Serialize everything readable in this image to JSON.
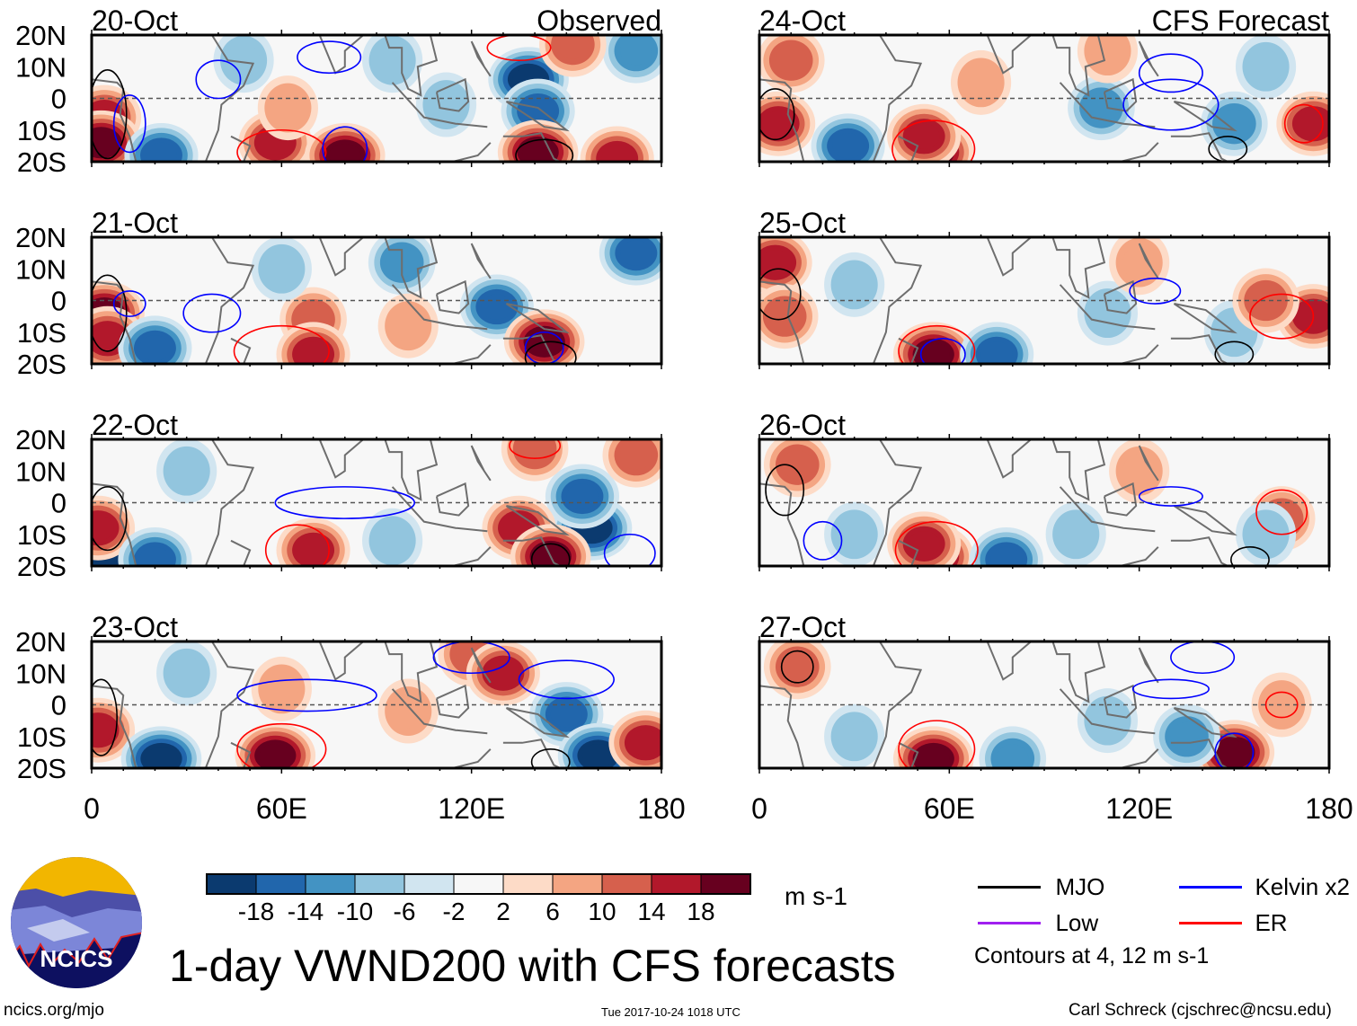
{
  "chart_data": {
    "type": "heatmap",
    "title": "1-day VWND200 with CFS forecasts",
    "units": "m s-1",
    "xlim": [
      0,
      180
    ],
    "ylim": [
      -20,
      20
    ],
    "xticks": [
      "0",
      "60E",
      "120E",
      "180"
    ],
    "xtick_values": [
      0,
      60,
      120,
      180
    ],
    "yticks": [
      "20N",
      "10N",
      "0",
      "10S",
      "20S"
    ],
    "ytick_values": [
      20,
      10,
      0,
      -10,
      -20
    ],
    "colorbar": {
      "labels": [
        "-18",
        "-14",
        "-10",
        "-6",
        "-2",
        "2",
        "6",
        "10",
        "14",
        "18"
      ],
      "colors": [
        "#0b3a6f",
        "#2166ac",
        "#4393c3",
        "#92c5de",
        "#d1e5f0",
        "#f7f7f7",
        "#fddbc7",
        "#f4a582",
        "#d6604d",
        "#b2182b",
        "#67001f"
      ]
    },
    "legend": {
      "items": [
        {
          "label": "MJO",
          "color": "#000000"
        },
        {
          "label": "Kelvin x2",
          "color": "#0000ff"
        },
        {
          "label": "Low",
          "color": "#a020f0"
        },
        {
          "label": "ER",
          "color": "#ff0000"
        }
      ],
      "note": "Contours at 4, 12 m s-1"
    },
    "column_headers": {
      "left": "Observed",
      "right": "CFS Forecast"
    },
    "panels": [
      {
        "date": "20-Oct",
        "col": 0,
        "row": 0,
        "anomalies": [
          [
            4,
            -6,
            14
          ],
          [
            3,
            -14,
            18
          ],
          [
            58,
            -14,
            14
          ],
          [
            80,
            -18,
            18
          ],
          [
            138,
            6,
            -18
          ],
          [
            141,
            -4,
            -14
          ],
          [
            141,
            -17,
            18
          ],
          [
            166,
            -19,
            14
          ],
          [
            22,
            -18,
            -14
          ],
          [
            62,
            -3,
            6
          ],
          [
            95,
            12,
            -6
          ],
          [
            172,
            15,
            -10
          ],
          [
            152,
            17,
            10
          ],
          [
            48,
            12,
            -6
          ],
          [
            112,
            -2,
            -6
          ]
        ],
        "contours": [
          [
            5,
            -5,
            6,
            14,
            "MJO"
          ],
          [
            12,
            -8,
            5,
            9,
            "Kelvin"
          ],
          [
            60,
            -17,
            14,
            7,
            "ER"
          ],
          [
            80,
            -16,
            7,
            7,
            "Kelvin"
          ],
          [
            143,
            -18,
            9,
            5,
            "MJO"
          ],
          [
            135,
            16,
            10,
            4,
            "ER"
          ],
          [
            75,
            13,
            10,
            5,
            "Kelvin"
          ],
          [
            40,
            6,
            7,
            6,
            "Kelvin"
          ]
        ]
      },
      {
        "date": "21-Oct",
        "col": 0,
        "row": 1,
        "anomalies": [
          [
            4,
            -4,
            18
          ],
          [
            5,
            -12,
            14
          ],
          [
            70,
            -6,
            10
          ],
          [
            70,
            -17,
            14
          ],
          [
            128,
            -2,
            -14
          ],
          [
            143,
            -13,
            18
          ],
          [
            98,
            12,
            -10
          ],
          [
            172,
            15,
            -14
          ],
          [
            20,
            -15,
            -14
          ],
          [
            60,
            10,
            -6
          ],
          [
            100,
            -8,
            6
          ]
        ],
        "contours": [
          [
            5,
            -4,
            6,
            12,
            "MJO"
          ],
          [
            60,
            -16,
            15,
            8,
            "ER"
          ],
          [
            143,
            -15,
            6,
            5,
            "Kelvin"
          ],
          [
            145,
            -18,
            8,
            5,
            "MJO"
          ],
          [
            38,
            -4,
            9,
            6,
            "Kelvin"
          ],
          [
            12,
            -1,
            5,
            4,
            "Kelvin"
          ]
        ]
      },
      {
        "date": "22-Oct",
        "col": 0,
        "row": 2,
        "anomalies": [
          [
            4,
            -16,
            -18
          ],
          [
            2,
            -8,
            14
          ],
          [
            70,
            -15,
            14
          ],
          [
            158,
            -8,
            -18
          ],
          [
            155,
            2,
            -14
          ],
          [
            135,
            -8,
            14
          ],
          [
            145,
            -17,
            18
          ],
          [
            140,
            17,
            10
          ],
          [
            20,
            -18,
            -14
          ],
          [
            95,
            -12,
            -6
          ],
          [
            172,
            15,
            10
          ],
          [
            30,
            10,
            -6
          ]
        ],
        "contours": [
          [
            65,
            -15,
            10,
            8,
            "ER"
          ],
          [
            145,
            -18,
            6,
            5,
            "MJO"
          ],
          [
            5,
            -5,
            6,
            10,
            "MJO"
          ],
          [
            80,
            0,
            22,
            5,
            "Kelvin"
          ],
          [
            170,
            -16,
            8,
            6,
            "Kelvin"
          ],
          [
            140,
            18,
            8,
            4,
            "ER"
          ]
        ]
      },
      {
        "date": "23-Oct",
        "col": 0,
        "row": 3,
        "anomalies": [
          [
            2,
            -8,
            14
          ],
          [
            58,
            -16,
            18
          ],
          [
            22,
            -17,
            -18
          ],
          [
            150,
            -3,
            -14
          ],
          [
            160,
            -16,
            -18
          ],
          [
            120,
            16,
            10
          ],
          [
            130,
            10,
            14
          ],
          [
            175,
            -12,
            14
          ],
          [
            60,
            5,
            6
          ],
          [
            100,
            -2,
            6
          ],
          [
            30,
            10,
            -6
          ]
        ],
        "contours": [
          [
            60,
            -14,
            14,
            8,
            "ER"
          ],
          [
            68,
            3,
            22,
            5,
            "Kelvin"
          ],
          [
            3,
            -4,
            5,
            12,
            "MJO"
          ],
          [
            145,
            -18,
            6,
            4,
            "MJO"
          ],
          [
            150,
            8,
            15,
            6,
            "Kelvin"
          ],
          [
            120,
            15,
            12,
            5,
            "Kelvin"
          ]
        ]
      },
      {
        "date": "24-Oct",
        "col": 1,
        "row": 0,
        "anomalies": [
          [
            6,
            -8,
            14
          ],
          [
            55,
            -17,
            18
          ],
          [
            52,
            -12,
            14
          ],
          [
            28,
            -15,
            -14
          ],
          [
            10,
            12,
            10
          ],
          [
            108,
            -3,
            -10
          ],
          [
            150,
            -8,
            -10
          ],
          [
            175,
            -8,
            14
          ],
          [
            110,
            15,
            6
          ],
          [
            160,
            10,
            -6
          ],
          [
            70,
            5,
            6
          ]
        ],
        "contours": [
          [
            55,
            -16,
            13,
            9,
            "ER"
          ],
          [
            5,
            -5,
            6,
            8,
            "MJO"
          ],
          [
            130,
            -2,
            15,
            8,
            "Kelvin"
          ],
          [
            130,
            8,
            10,
            6,
            "Kelvin"
          ],
          [
            172,
            -8,
            6,
            6,
            "ER"
          ],
          [
            148,
            -16,
            6,
            4,
            "MJO"
          ]
        ]
      },
      {
        "date": "25-Oct",
        "col": 1,
        "row": 1,
        "anomalies": [
          [
            55,
            -17,
            18
          ],
          [
            5,
            12,
            14
          ],
          [
            8,
            -5,
            10
          ],
          [
            75,
            -17,
            -14
          ],
          [
            175,
            -5,
            14
          ],
          [
            150,
            -10,
            -6
          ],
          [
            160,
            0,
            10
          ],
          [
            110,
            -4,
            -6
          ],
          [
            30,
            5,
            -6
          ],
          [
            120,
            12,
            6
          ]
        ],
        "contours": [
          [
            56,
            -16,
            12,
            8,
            "ER"
          ],
          [
            58,
            -17,
            7,
            5,
            "Kelvin"
          ],
          [
            6,
            2,
            7,
            8,
            "MJO"
          ],
          [
            165,
            -5,
            10,
            7,
            "ER"
          ],
          [
            125,
            3,
            8,
            4,
            "Kelvin"
          ],
          [
            150,
            -17,
            6,
            4,
            "MJO"
          ]
        ]
      },
      {
        "date": "26-Oct",
        "col": 1,
        "row": 2,
        "anomalies": [
          [
            55,
            -17,
            18
          ],
          [
            52,
            -13,
            14
          ],
          [
            78,
            -18,
            -14
          ],
          [
            165,
            -5,
            10
          ],
          [
            12,
            12,
            10
          ],
          [
            160,
            -10,
            -6
          ],
          [
            100,
            -10,
            -6
          ],
          [
            30,
            -10,
            -6
          ],
          [
            120,
            10,
            6
          ]
        ],
        "contours": [
          [
            56,
            -15,
            13,
            9,
            "ER"
          ],
          [
            8,
            4,
            6,
            8,
            "MJO"
          ],
          [
            165,
            -3,
            8,
            7,
            "ER"
          ],
          [
            130,
            2,
            10,
            3,
            "Kelvin"
          ],
          [
            155,
            -18,
            6,
            4,
            "MJO"
          ],
          [
            20,
            -12,
            6,
            6,
            "Kelvin"
          ]
        ]
      },
      {
        "date": "27-Oct",
        "col": 1,
        "row": 3,
        "anomalies": [
          [
            55,
            -17,
            18
          ],
          [
            150,
            -15,
            18
          ],
          [
            12,
            12,
            10
          ],
          [
            80,
            -17,
            -10
          ],
          [
            135,
            -10,
            -10
          ],
          [
            165,
            0,
            6
          ],
          [
            110,
            -5,
            -6
          ],
          [
            30,
            -10,
            -6
          ]
        ],
        "contours": [
          [
            56,
            -14,
            12,
            9,
            "ER"
          ],
          [
            150,
            -15,
            6,
            6,
            "Kelvin"
          ],
          [
            12,
            12,
            5,
            5,
            "MJO"
          ],
          [
            130,
            5,
            12,
            3,
            "Kelvin"
          ],
          [
            165,
            0,
            5,
            4,
            "ER"
          ],
          [
            140,
            15,
            10,
            5,
            "Kelvin"
          ]
        ]
      }
    ]
  },
  "footer": {
    "logo_text": "NCICS",
    "site": "ncics.org/mjo",
    "timestamp": "Tue 2017-10-24 1018 UTC",
    "credit": "Carl Schreck (cjschrec@ncsu.edu)"
  }
}
